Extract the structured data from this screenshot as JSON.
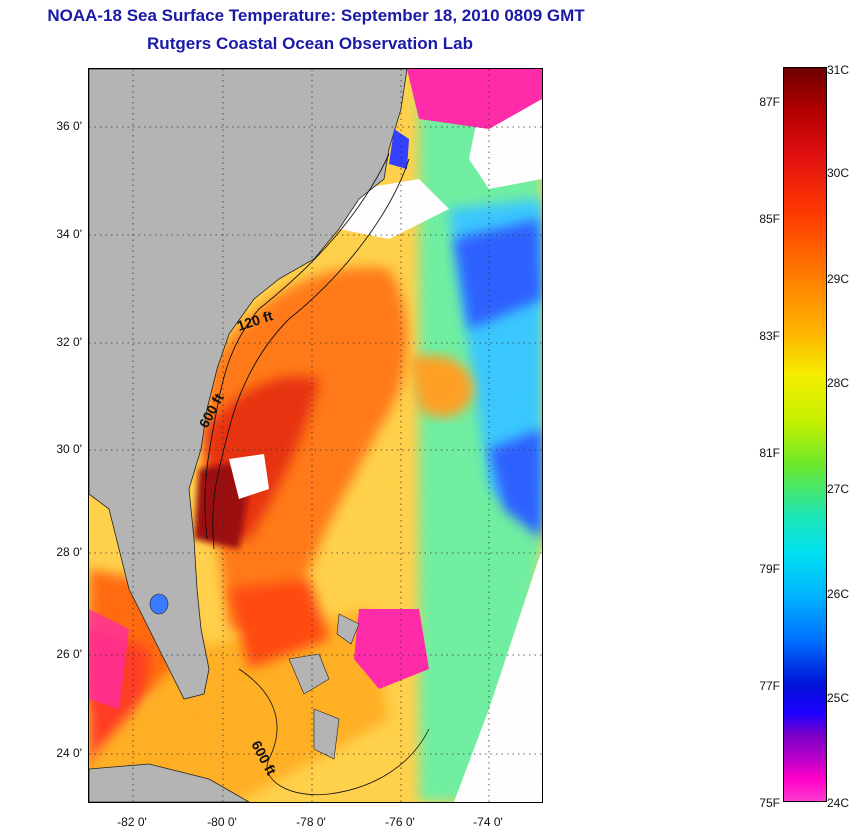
{
  "title": {
    "line1": "NOAA-18 Sea Surface Temperature:  September 18, 2010 0809 GMT",
    "line2": "Rutgers Coastal Ocean Observation Lab"
  },
  "map": {
    "lat_labels": [
      "36 0'",
      "34 0'",
      "32 0'",
      "30 0'",
      "28 0'",
      "26 0'",
      "24 0'"
    ],
    "lon_labels": [
      "-82 0'",
      "-80 0'",
      "-78 0'",
      "-76 0'",
      "-74 0'"
    ],
    "isobath_labels": [
      "120 ft",
      "600 ft",
      "600 ft"
    ],
    "colors": {
      "land": "#b4b4b4",
      "cloud": "#ffffff",
      "warm": "#ff5a00",
      "hot": "#a00000",
      "mid": "#ffd200",
      "cool": "#00e0ee",
      "cold": "#2040ff",
      "flag": "#ff2aa8"
    }
  },
  "colorbar": {
    "fahrenheit_labels": [
      "87F",
      "85F",
      "83F",
      "81F",
      "79F",
      "77F",
      "75F"
    ],
    "celsius_labels": [
      "31C",
      "30C",
      "29C",
      "28C",
      "27C",
      "26C",
      "25C",
      "24C"
    ]
  }
}
